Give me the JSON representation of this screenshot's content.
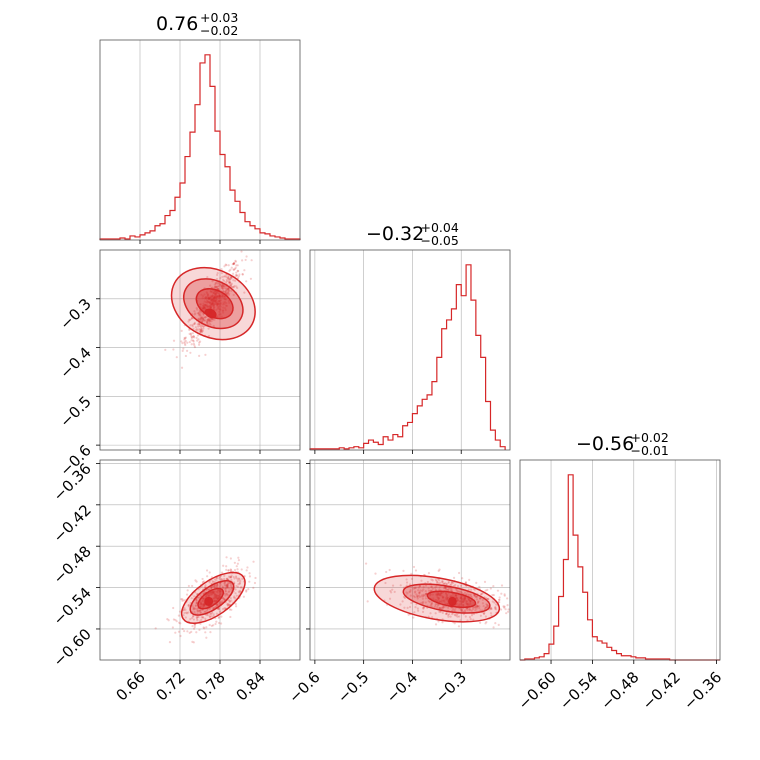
{
  "colors": {
    "series": "#d62728",
    "fill": "#d62728",
    "grid": "#b0b0b0",
    "frame": "#000000"
  },
  "chart_data": [
    {
      "type": "histogram",
      "title": {
        "base": "0.76",
        "plus": "+0.03",
        "minus": "−0.02"
      },
      "x_range": [
        0.6,
        0.9
      ],
      "xticks": [
        0.66,
        0.72,
        0.78,
        0.84
      ],
      "xtick_labels": [
        "0.66",
        "0.72",
        "0.78",
        "0.84"
      ],
      "bins": [
        0.6,
        0.6075,
        0.615,
        0.6225,
        0.63,
        0.6375,
        0.645,
        0.6525,
        0.66,
        0.6675,
        0.675,
        0.6825,
        0.69,
        0.6975,
        0.705,
        0.7125,
        0.72,
        0.7275,
        0.735,
        0.7425,
        0.75,
        0.7575,
        0.765,
        0.7725,
        0.78,
        0.7875,
        0.795,
        0.8025,
        0.81,
        0.8175,
        0.825,
        0.8325,
        0.84,
        0.8475,
        0.855,
        0.8625,
        0.87,
        0.8775,
        0.885,
        0.8925,
        0.9
      ],
      "counts": [
        1,
        1,
        1,
        1,
        2,
        1,
        4,
        3,
        5,
        7,
        9,
        14,
        16,
        24,
        29,
        42,
        56,
        82,
        106,
        133,
        174,
        182,
        151,
        107,
        84,
        72,
        49,
        38,
        27,
        18,
        14,
        11,
        7,
        6,
        4,
        3,
        2,
        1,
        1,
        1
      ]
    },
    {
      "type": "histogram",
      "title": {
        "base": "−0.32",
        "plus": "+0.04",
        "minus": "−0.05"
      },
      "x_range": [
        -0.61,
        -0.2
      ],
      "xticks": [
        -0.6,
        -0.5,
        -0.4,
        -0.3
      ],
      "xtick_labels": [
        "−0.6",
        "−0.5",
        "−0.4",
        "−0.3"
      ],
      "bins": [
        -0.61,
        -0.6,
        -0.59,
        -0.58,
        -0.57,
        -0.56,
        -0.55,
        -0.54,
        -0.53,
        -0.52,
        -0.51,
        -0.5,
        -0.49,
        -0.48,
        -0.47,
        -0.46,
        -0.45,
        -0.44,
        -0.43,
        -0.42,
        -0.41,
        -0.4,
        -0.39,
        -0.38,
        -0.37,
        -0.36,
        -0.35,
        -0.34,
        -0.33,
        -0.32,
        -0.31,
        -0.3,
        -0.29,
        -0.28,
        -0.27,
        -0.26,
        -0.25,
        -0.24,
        -0.23,
        -0.22,
        -0.21
      ],
      "counts": [
        1,
        1,
        1,
        1,
        1,
        1,
        2,
        1,
        2,
        3,
        2,
        6,
        9,
        7,
        5,
        12,
        9,
        14,
        12,
        22,
        25,
        33,
        40,
        46,
        50,
        62,
        84,
        110,
        118,
        128,
        150,
        140,
        168,
        136,
        104,
        84,
        44,
        18,
        9,
        3
      ],
      "ylabel_ticks": [
        -0.3,
        -0.4,
        -0.5,
        -0.6
      ],
      "ytick_labels": [
        "−0.3",
        "−0.4",
        "−0.5",
        "−0.6"
      ]
    },
    {
      "type": "histogram",
      "title": {
        "base": "−0.56",
        "plus": "+0.02",
        "minus": "−0.01"
      },
      "x_range": [
        -0.645,
        -0.355
      ],
      "xticks": [
        -0.6,
        -0.54,
        -0.48,
        -0.42,
        -0.36
      ],
      "xtick_labels": [
        "−0.60",
        "−0.54",
        "−0.48",
        "−0.42",
        "−0.36"
      ],
      "bins": [
        -0.645,
        -0.638,
        -0.631,
        -0.624,
        -0.617,
        -0.61,
        -0.603,
        -0.596,
        -0.589,
        -0.582,
        -0.575,
        -0.568,
        -0.561,
        -0.554,
        -0.547,
        -0.54,
        -0.533,
        -0.526,
        -0.519,
        -0.512,
        -0.505,
        -0.498,
        -0.491,
        -0.484,
        -0.477,
        -0.47,
        -0.463,
        -0.456,
        -0.449,
        -0.442,
        -0.435,
        -0.428,
        -0.421,
        -0.414,
        -0.407,
        -0.4,
        -0.393,
        -0.386,
        -0.379,
        -0.372,
        -0.365,
        -0.355
      ],
      "counts": [
        0,
        1,
        1,
        2,
        3,
        6,
        15,
        32,
        60,
        95,
        175,
        118,
        88,
        64,
        38,
        22,
        18,
        16,
        12,
        9,
        6,
        4,
        4,
        3,
        2,
        2,
        1,
        1,
        1,
        1,
        1,
        0,
        0,
        0,
        0,
        0,
        0,
        0,
        0,
        0,
        0
      ],
      "ylabel_ticks": [
        -0.36,
        -0.42,
        -0.48,
        -0.54,
        -0.6
      ],
      "ytick_labels": [
        "−0.36",
        "−0.42",
        "−0.48",
        "−0.54",
        "−0.60"
      ]
    },
    {
      "type": "scatter",
      "x_param": 0,
      "y_param": 1,
      "x_range": [
        0.6,
        0.9
      ],
      "y_range": [
        -0.61,
        -0.2
      ],
      "center": [
        0.77,
        -0.31
      ],
      "spread": [
        0.018,
        0.035
      ],
      "correlation": 0.85,
      "levels": [
        {
          "cx": 0.77,
          "cy": -0.31,
          "rx": 0.05,
          "ry": 0.09,
          "rot": -62
        },
        {
          "cx": 0.77,
          "cy": -0.31,
          "rx": 0.034,
          "ry": 0.064,
          "rot": -62
        },
        {
          "cx": 0.772,
          "cy": -0.31,
          "rx": 0.02,
          "ry": 0.04,
          "rot": -62
        },
        {
          "cx": 0.766,
          "cy": -0.33,
          "rx": 0.006,
          "ry": 0.012,
          "rot": -62
        }
      ]
    },
    {
      "type": "scatter",
      "x_param": 0,
      "y_param": 2,
      "x_range": [
        0.6,
        0.9
      ],
      "y_range": [
        -0.645,
        -0.355
      ],
      "center": [
        0.77,
        -0.555
      ],
      "spread": [
        0.02,
        0.018
      ],
      "correlation": 0.6,
      "levels": [
        {
          "cx": 0.77,
          "cy": -0.555,
          "rx": 0.055,
          "ry": 0.025,
          "rot": -35
        },
        {
          "cx": 0.768,
          "cy": -0.555,
          "rx": 0.038,
          "ry": 0.016,
          "rot": -35
        },
        {
          "cx": 0.766,
          "cy": -0.556,
          "rx": 0.022,
          "ry": 0.01,
          "rot": -35
        },
        {
          "cx": 0.763,
          "cy": -0.56,
          "rx": 0.006,
          "ry": 0.006,
          "rot": 0
        }
      ]
    },
    {
      "type": "scatter",
      "x_param": 1,
      "y_param": 2,
      "x_range": [
        -0.61,
        -0.2
      ],
      "y_range": [
        -0.645,
        -0.355
      ],
      "center": [
        -0.32,
        -0.556
      ],
      "spread": [
        0.045,
        0.014
      ],
      "correlation": -0.35,
      "levels": [
        {
          "cx": -0.35,
          "cy": -0.556,
          "rx": 0.13,
          "ry": 0.03,
          "rot": 10
        },
        {
          "cx": -0.33,
          "cy": -0.556,
          "rx": 0.09,
          "ry": 0.018,
          "rot": 10
        },
        {
          "cx": -0.32,
          "cy": -0.557,
          "rx": 0.05,
          "ry": 0.01,
          "rot": 10
        },
        {
          "cx": -0.318,
          "cy": -0.56,
          "rx": 0.008,
          "ry": 0.006,
          "rot": 0
        }
      ]
    }
  ]
}
